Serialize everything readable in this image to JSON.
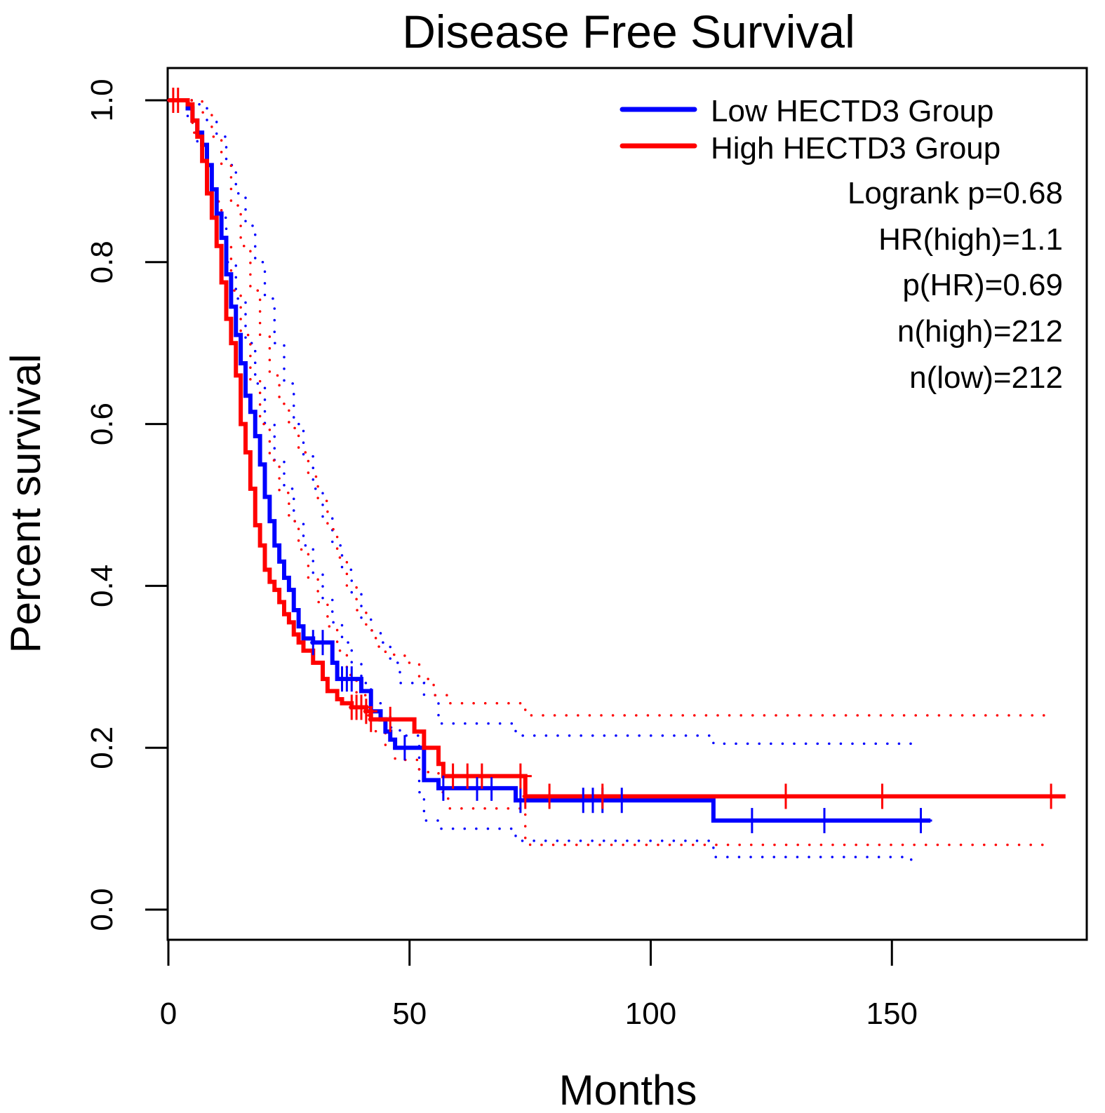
{
  "chart_data": {
    "type": "line",
    "subtype": "kaplan-meier",
    "title": "Disease Free Survival",
    "xlabel": "Months",
    "ylabel": "Percent survival",
    "xlim": [
      0,
      185
    ],
    "ylim": [
      0,
      1.0
    ],
    "x_ticks": [
      0,
      50,
      100,
      150
    ],
    "x_tick_labels": [
      "0",
      "50",
      "100",
      "150"
    ],
    "y_ticks": [
      0.0,
      0.2,
      0.4,
      0.6,
      0.8,
      1.0
    ],
    "y_tick_labels": [
      "0.0",
      "0.2",
      "0.4",
      "0.6",
      "0.8",
      "1.0"
    ],
    "grid": false,
    "legend_position": "top-right",
    "legend": [
      {
        "label": "Low HECTD3 Group",
        "color": "#0000ff"
      },
      {
        "label": "High HECTD3 Group",
        "color": "#ff0000"
      }
    ],
    "stats": [
      "Logrank p=0.68",
      "HR(high)=1.1",
      "p(HR)=0.69",
      "n(high)=212",
      "n(low)=212"
    ],
    "series": [
      {
        "name": "Low HECTD3 Group",
        "color": "#0000ff",
        "steps": [
          [
            0,
            1.0
          ],
          [
            3,
            1.0
          ],
          [
            4,
            0.99
          ],
          [
            5,
            0.975
          ],
          [
            6,
            0.96
          ],
          [
            7,
            0.945
          ],
          [
            8,
            0.92
          ],
          [
            9,
            0.89
          ],
          [
            10,
            0.86
          ],
          [
            11,
            0.83
          ],
          [
            12,
            0.785
          ],
          [
            13,
            0.745
          ],
          [
            14,
            0.71
          ],
          [
            15,
            0.675
          ],
          [
            16,
            0.635
          ],
          [
            17,
            0.615
          ],
          [
            18,
            0.585
          ],
          [
            19,
            0.55
          ],
          [
            20,
            0.51
          ],
          [
            21,
            0.48
          ],
          [
            22,
            0.45
          ],
          [
            23,
            0.43
          ],
          [
            24,
            0.41
          ],
          [
            25,
            0.395
          ],
          [
            26,
            0.37
          ],
          [
            27,
            0.35
          ],
          [
            28,
            0.335
          ],
          [
            30,
            0.33
          ],
          [
            34,
            0.305
          ],
          [
            35,
            0.285
          ],
          [
            40,
            0.27
          ],
          [
            42,
            0.245
          ],
          [
            44,
            0.235
          ],
          [
            45,
            0.22
          ],
          [
            46,
            0.21
          ],
          [
            47,
            0.2
          ],
          [
            53,
            0.16
          ],
          [
            56,
            0.15
          ],
          [
            72,
            0.135
          ],
          [
            113,
            0.11
          ],
          [
            158,
            0.11
          ]
        ],
        "upper_ci": [
          [
            0,
            1.0
          ],
          [
            4,
            1.0
          ],
          [
            6,
            0.995
          ],
          [
            8,
            0.975
          ],
          [
            10,
            0.955
          ],
          [
            12,
            0.92
          ],
          [
            14,
            0.885
          ],
          [
            16,
            0.845
          ],
          [
            18,
            0.8
          ],
          [
            20,
            0.755
          ],
          [
            22,
            0.7
          ],
          [
            24,
            0.65
          ],
          [
            26,
            0.6
          ],
          [
            28,
            0.56
          ],
          [
            30,
            0.52
          ],
          [
            32,
            0.485
          ],
          [
            34,
            0.45
          ],
          [
            36,
            0.42
          ],
          [
            38,
            0.39
          ],
          [
            40,
            0.36
          ],
          [
            42,
            0.345
          ],
          [
            44,
            0.33
          ],
          [
            46,
            0.305
          ],
          [
            48,
            0.28
          ],
          [
            53,
            0.265
          ],
          [
            56,
            0.23
          ],
          [
            72,
            0.215
          ],
          [
            113,
            0.205
          ],
          [
            156,
            0.205
          ]
        ],
        "lower_ci": [
          [
            0,
            1.0
          ],
          [
            4,
            0.975
          ],
          [
            6,
            0.94
          ],
          [
            8,
            0.895
          ],
          [
            10,
            0.855
          ],
          [
            12,
            0.8
          ],
          [
            14,
            0.755
          ],
          [
            16,
            0.7
          ],
          [
            18,
            0.65
          ],
          [
            20,
            0.6
          ],
          [
            22,
            0.555
          ],
          [
            24,
            0.52
          ],
          [
            26,
            0.48
          ],
          [
            28,
            0.45
          ],
          [
            30,
            0.415
          ],
          [
            32,
            0.385
          ],
          [
            34,
            0.355
          ],
          [
            36,
            0.33
          ],
          [
            38,
            0.305
          ],
          [
            40,
            0.28
          ],
          [
            42,
            0.255
          ],
          [
            44,
            0.24
          ],
          [
            46,
            0.225
          ],
          [
            48,
            0.215
          ],
          [
            52,
            0.145
          ],
          [
            53,
            0.11
          ],
          [
            56,
            0.1
          ],
          [
            72,
            0.09
          ],
          [
            73,
            0.085
          ],
          [
            113,
            0.065
          ],
          [
            154,
            0.06
          ]
        ],
        "censored": [
          30,
          32,
          36,
          37,
          38,
          49,
          57,
          64,
          67,
          73,
          86,
          88,
          90,
          94,
          121,
          136,
          156
        ]
      },
      {
        "name": "High HECTD3 Group",
        "color": "#ff0000",
        "steps": [
          [
            0,
            1.0
          ],
          [
            4,
            0.995
          ],
          [
            5,
            0.975
          ],
          [
            6,
            0.955
          ],
          [
            7,
            0.925
          ],
          [
            8,
            0.885
          ],
          [
            9,
            0.855
          ],
          [
            10,
            0.82
          ],
          [
            11,
            0.775
          ],
          [
            12,
            0.73
          ],
          [
            13,
            0.7
          ],
          [
            14,
            0.66
          ],
          [
            15,
            0.6
          ],
          [
            16,
            0.565
          ],
          [
            17,
            0.52
          ],
          [
            18,
            0.475
          ],
          [
            19,
            0.45
          ],
          [
            20,
            0.42
          ],
          [
            21,
            0.405
          ],
          [
            22,
            0.395
          ],
          [
            23,
            0.38
          ],
          [
            24,
            0.365
          ],
          [
            25,
            0.355
          ],
          [
            26,
            0.34
          ],
          [
            27,
            0.33
          ],
          [
            28,
            0.32
          ],
          [
            30,
            0.305
          ],
          [
            32,
            0.285
          ],
          [
            33,
            0.27
          ],
          [
            35,
            0.26
          ],
          [
            36,
            0.255
          ],
          [
            38,
            0.25
          ],
          [
            41,
            0.245
          ],
          [
            42,
            0.235
          ],
          [
            51,
            0.22
          ],
          [
            53,
            0.2
          ],
          [
            56,
            0.18
          ],
          [
            57,
            0.165
          ],
          [
            74,
            0.14
          ],
          [
            186,
            0.14
          ]
        ],
        "upper_ci": [
          [
            0,
            1.0
          ],
          [
            5,
            1.0
          ],
          [
            7,
            0.985
          ],
          [
            9,
            0.955
          ],
          [
            11,
            0.92
          ],
          [
            13,
            0.87
          ],
          [
            15,
            0.82
          ],
          [
            17,
            0.765
          ],
          [
            19,
            0.71
          ],
          [
            21,
            0.66
          ],
          [
            23,
            0.625
          ],
          [
            25,
            0.595
          ],
          [
            27,
            0.565
          ],
          [
            29,
            0.535
          ],
          [
            31,
            0.505
          ],
          [
            33,
            0.47
          ],
          [
            35,
            0.435
          ],
          [
            37,
            0.4
          ],
          [
            39,
            0.37
          ],
          [
            41,
            0.345
          ],
          [
            43,
            0.325
          ],
          [
            45,
            0.315
          ],
          [
            49,
            0.305
          ],
          [
            52,
            0.285
          ],
          [
            55,
            0.265
          ],
          [
            58,
            0.255
          ],
          [
            74,
            0.24
          ],
          [
            182,
            0.24
          ]
        ],
        "lower_ci": [
          [
            0,
            1.0
          ],
          [
            5,
            0.96
          ],
          [
            7,
            0.92
          ],
          [
            9,
            0.875
          ],
          [
            11,
            0.82
          ],
          [
            13,
            0.765
          ],
          [
            15,
            0.71
          ],
          [
            17,
            0.655
          ],
          [
            19,
            0.6
          ],
          [
            21,
            0.555
          ],
          [
            23,
            0.515
          ],
          [
            25,
            0.48
          ],
          [
            27,
            0.445
          ],
          [
            29,
            0.41
          ],
          [
            31,
            0.38
          ],
          [
            33,
            0.35
          ],
          [
            35,
            0.32
          ],
          [
            37,
            0.29
          ],
          [
            39,
            0.265
          ],
          [
            41,
            0.24
          ],
          [
            43,
            0.22
          ],
          [
            45,
            0.2
          ],
          [
            47,
            0.185
          ],
          [
            52,
            0.17
          ],
          [
            56,
            0.145
          ],
          [
            58,
            0.125
          ],
          [
            74,
            0.085
          ],
          [
            75,
            0.08
          ],
          [
            182,
            0.08
          ]
        ],
        "censored": [
          1,
          2,
          38,
          39,
          40,
          41,
          42,
          46,
          59,
          62,
          65,
          73,
          74,
          79,
          90,
          128,
          148,
          183
        ]
      }
    ]
  }
}
